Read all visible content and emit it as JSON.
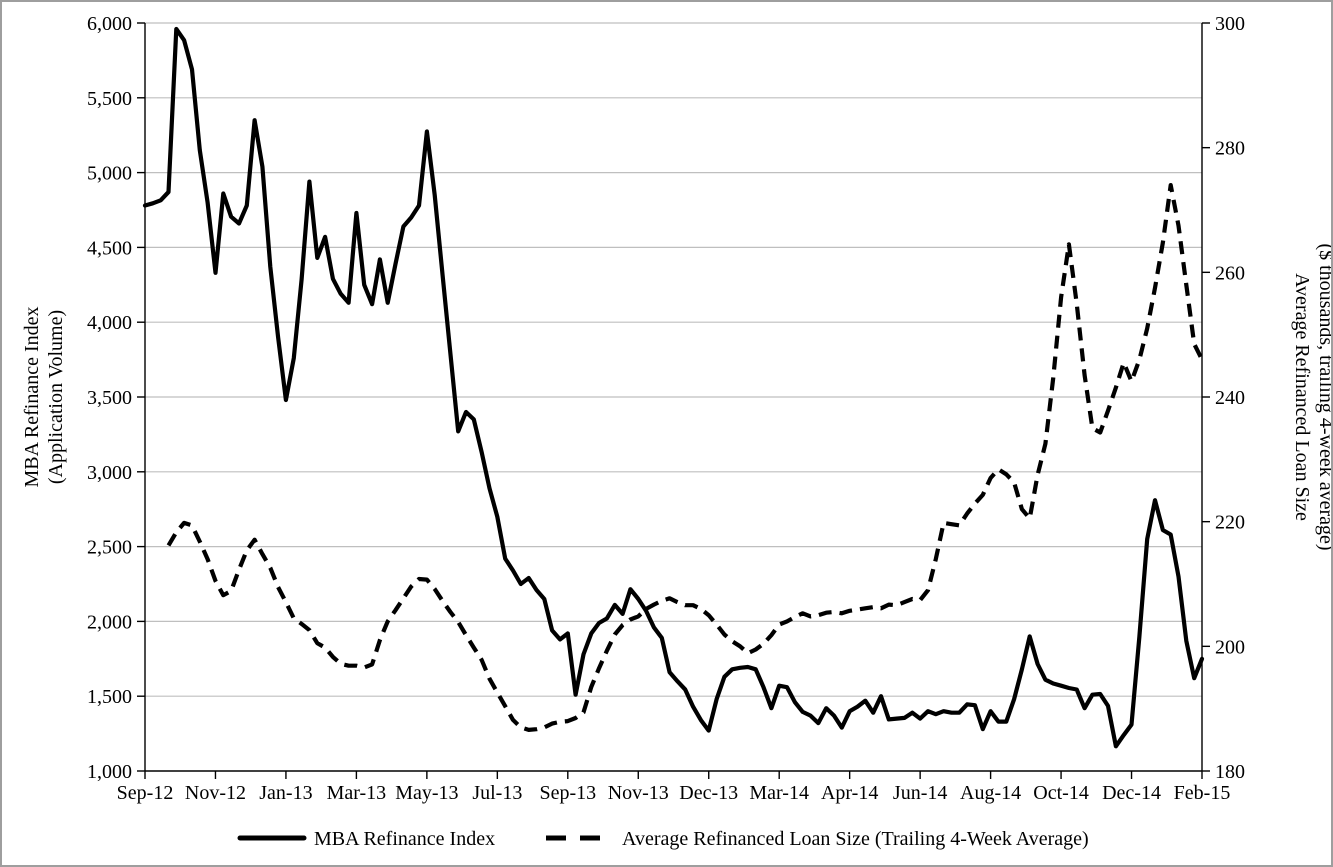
{
  "chart_data": {
    "type": "line",
    "x_tick_labels": [
      "Sep-12",
      "Nov-12",
      "Jan-13",
      "Mar-13",
      "May-13",
      "Jul-13",
      "Sep-13",
      "Nov-13",
      "Dec-13",
      "Mar-14",
      "Apr-14",
      "Jun-14",
      "Aug-14",
      "Oct-14",
      "Dec-14",
      "Feb-15"
    ],
    "points_per_label": 9,
    "y_left": {
      "title_lines": [
        "MBA Refinance Index",
        "(Application Volume)"
      ],
      "min": 1000,
      "max": 6000,
      "step": 500,
      "tick_labels": [
        "1,000",
        "1,500",
        "2,000",
        "2,500",
        "3,000",
        "3,500",
        "4,000",
        "4,500",
        "5,000",
        "5,500",
        "6,000"
      ]
    },
    "y_right": {
      "title_lines": [
        "Average Refinanced Loan Size",
        "($ thousands, trailing 4-week average)"
      ],
      "min": 180,
      "max": 300,
      "step": 20,
      "tick_labels": [
        "180",
        "200",
        "220",
        "240",
        "260",
        "280",
        "300"
      ]
    },
    "grid": {
      "on": true,
      "color": "#bfbfbf"
    },
    "axis_color": "#000000",
    "series": [
      {
        "name": "MBA Refinance Index",
        "axis": "left",
        "style": "solid",
        "color": "#000000",
        "values": [
          4780,
          4795,
          4815,
          4870,
          5960,
          5885,
          5690,
          5150,
          4800,
          4330,
          4860,
          4705,
          4660,
          4780,
          5350,
          5040,
          4370,
          3900,
          3480,
          3760,
          4285,
          4940,
          4430,
          4570,
          4290,
          4190,
          4130,
          4730,
          4250,
          4120,
          4420,
          4130,
          4390,
          4640,
          4700,
          4780,
          5275,
          4850,
          4320,
          3790,
          3270,
          3400,
          3350,
          3130,
          2890,
          2700,
          2420,
          2340,
          2250,
          2290,
          2210,
          2150,
          1940,
          1880,
          1920,
          1510,
          1780,
          1920,
          1990,
          2020,
          2110,
          2050,
          2215,
          2150,
          2070,
          1960,
          1890,
          1660,
          1600,
          1545,
          1430,
          1340,
          1270,
          1480,
          1630,
          1680,
          1690,
          1695,
          1680,
          1560,
          1420,
          1570,
          1560,
          1460,
          1395,
          1370,
          1320,
          1420,
          1370,
          1290,
          1400,
          1430,
          1470,
          1390,
          1500,
          1345,
          1350,
          1355,
          1390,
          1350,
          1400,
          1380,
          1400,
          1390,
          1390,
          1445,
          1440,
          1280,
          1400,
          1330,
          1330,
          1480,
          1680,
          1900,
          1715,
          1610,
          1585,
          1570,
          1555,
          1545,
          1420,
          1510,
          1515,
          1435,
          1165,
          1240,
          1310,
          1900,
          2550,
          2810,
          2610,
          2580,
          2300,
          1870,
          1620,
          1750
        ]
      },
      {
        "name": "Average Refinanced Loan Size (Trailing 4-Week Average)",
        "axis": "right",
        "style": "dashed",
        "color": "#000000",
        "values": [
          null,
          null,
          null,
          216.2,
          218.3,
          219.8,
          219.4,
          216.8,
          214.0,
          210.5,
          208.2,
          208.9,
          212.3,
          215.4,
          217.1,
          214.8,
          212.6,
          209.5,
          207.1,
          204.5,
          203.6,
          202.6,
          200.5,
          199.8,
          198.3,
          197.2,
          196.9,
          196.9,
          196.6,
          197.1,
          201.0,
          204.0,
          205.8,
          207.7,
          209.6,
          210.8,
          210.7,
          209.2,
          207.3,
          205.5,
          203.9,
          201.8,
          199.8,
          197.8,
          194.8,
          192.6,
          190.4,
          188.2,
          187.0,
          186.6,
          186.7,
          187.0,
          187.6,
          187.9,
          188.0,
          188.5,
          189.4,
          193.5,
          196.5,
          199.3,
          201.9,
          203.4,
          204.3,
          204.8,
          206.0,
          206.7,
          207.3,
          207.7,
          207.1,
          206.6,
          206.6,
          206.0,
          205.0,
          203.5,
          201.9,
          200.8,
          200.0,
          198.9,
          199.5,
          200.4,
          201.8,
          203.5,
          204.0,
          204.7,
          205.3,
          204.8,
          205.0,
          205.4,
          205.5,
          205.3,
          205.7,
          205.9,
          206.1,
          206.3,
          206.1,
          206.7,
          206.6,
          207.1,
          207.6,
          207.4,
          209.0,
          214.0,
          219.8,
          219.6,
          219.4,
          221.3,
          222.9,
          224.3,
          227.0,
          228.4,
          227.6,
          226.3,
          222.0,
          220.5,
          227.5,
          232.5,
          243.0,
          256.0,
          264.5,
          255.0,
          243.5,
          235.0,
          234.3,
          237.8,
          241.5,
          245.5,
          242.5,
          246.0,
          251.0,
          257.5,
          264.8,
          274.0,
          267.5,
          258.0,
          248.5,
          246.0
        ]
      }
    ],
    "legend": {
      "position": "bottom",
      "entries": [
        "MBA Refinance Index",
        "Average Refinanced Loan Size (Trailing 4-Week Average)"
      ]
    }
  }
}
